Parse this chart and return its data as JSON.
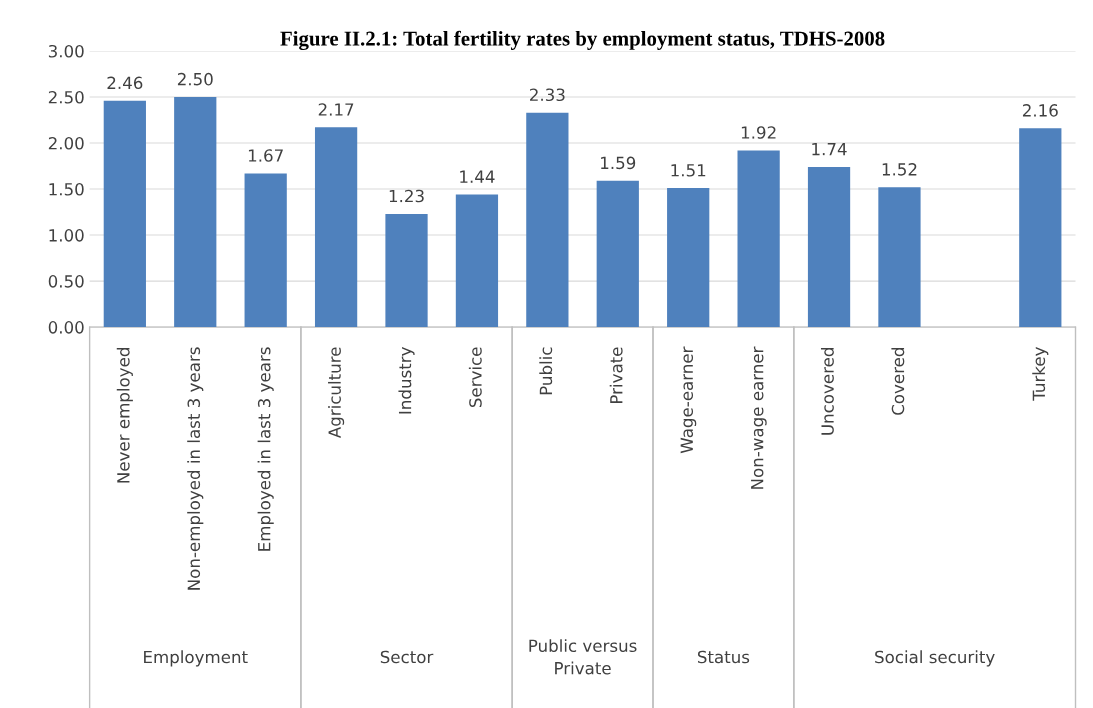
{
  "chart_data": {
    "type": "bar",
    "title": "Figure II.2.1: Total fertility rates by employment status, TDHS-2008",
    "categories": [
      "Never employed",
      "Non-employed in last 3 years",
      "Employed in last 3 years",
      "Agriculture",
      "Industry",
      "Service",
      "Public",
      "Private",
      "Wage-earner",
      "Non-wage earner",
      "Uncovered",
      "Covered",
      null,
      "Turkey"
    ],
    "values": [
      2.46,
      2.5,
      1.67,
      2.17,
      1.23,
      1.44,
      2.33,
      1.59,
      1.51,
      1.92,
      1.74,
      1.52,
      null,
      2.16
    ],
    "value_labels": [
      "2.46",
      "2.50",
      "1.67",
      "2.17",
      "1.23",
      "1.44",
      "2.33",
      "1.59",
      "1.51",
      "1.92",
      "1.74",
      "1.52",
      null,
      "2.16"
    ],
    "color": "#4f81bd",
    "annotations": [
      "Employment",
      "Sector",
      "Public versus Private",
      "Status",
      "Social security"
    ],
    "ylim": [
      0,
      3
    ],
    "yticks": [
      {
        "value": 0,
        "label": "0.00"
      },
      {
        "value": 0.5,
        "label": "0.50"
      },
      {
        "value": 1,
        "label": "1.00"
      },
      {
        "value": 1.5,
        "label": "1.50"
      },
      {
        "value": 2,
        "label": "2.00"
      },
      {
        "value": 2.5,
        "label": "2.50"
      },
      {
        "value": 3,
        "label": "3.00"
      }
    ],
    "grid": "y"
  }
}
